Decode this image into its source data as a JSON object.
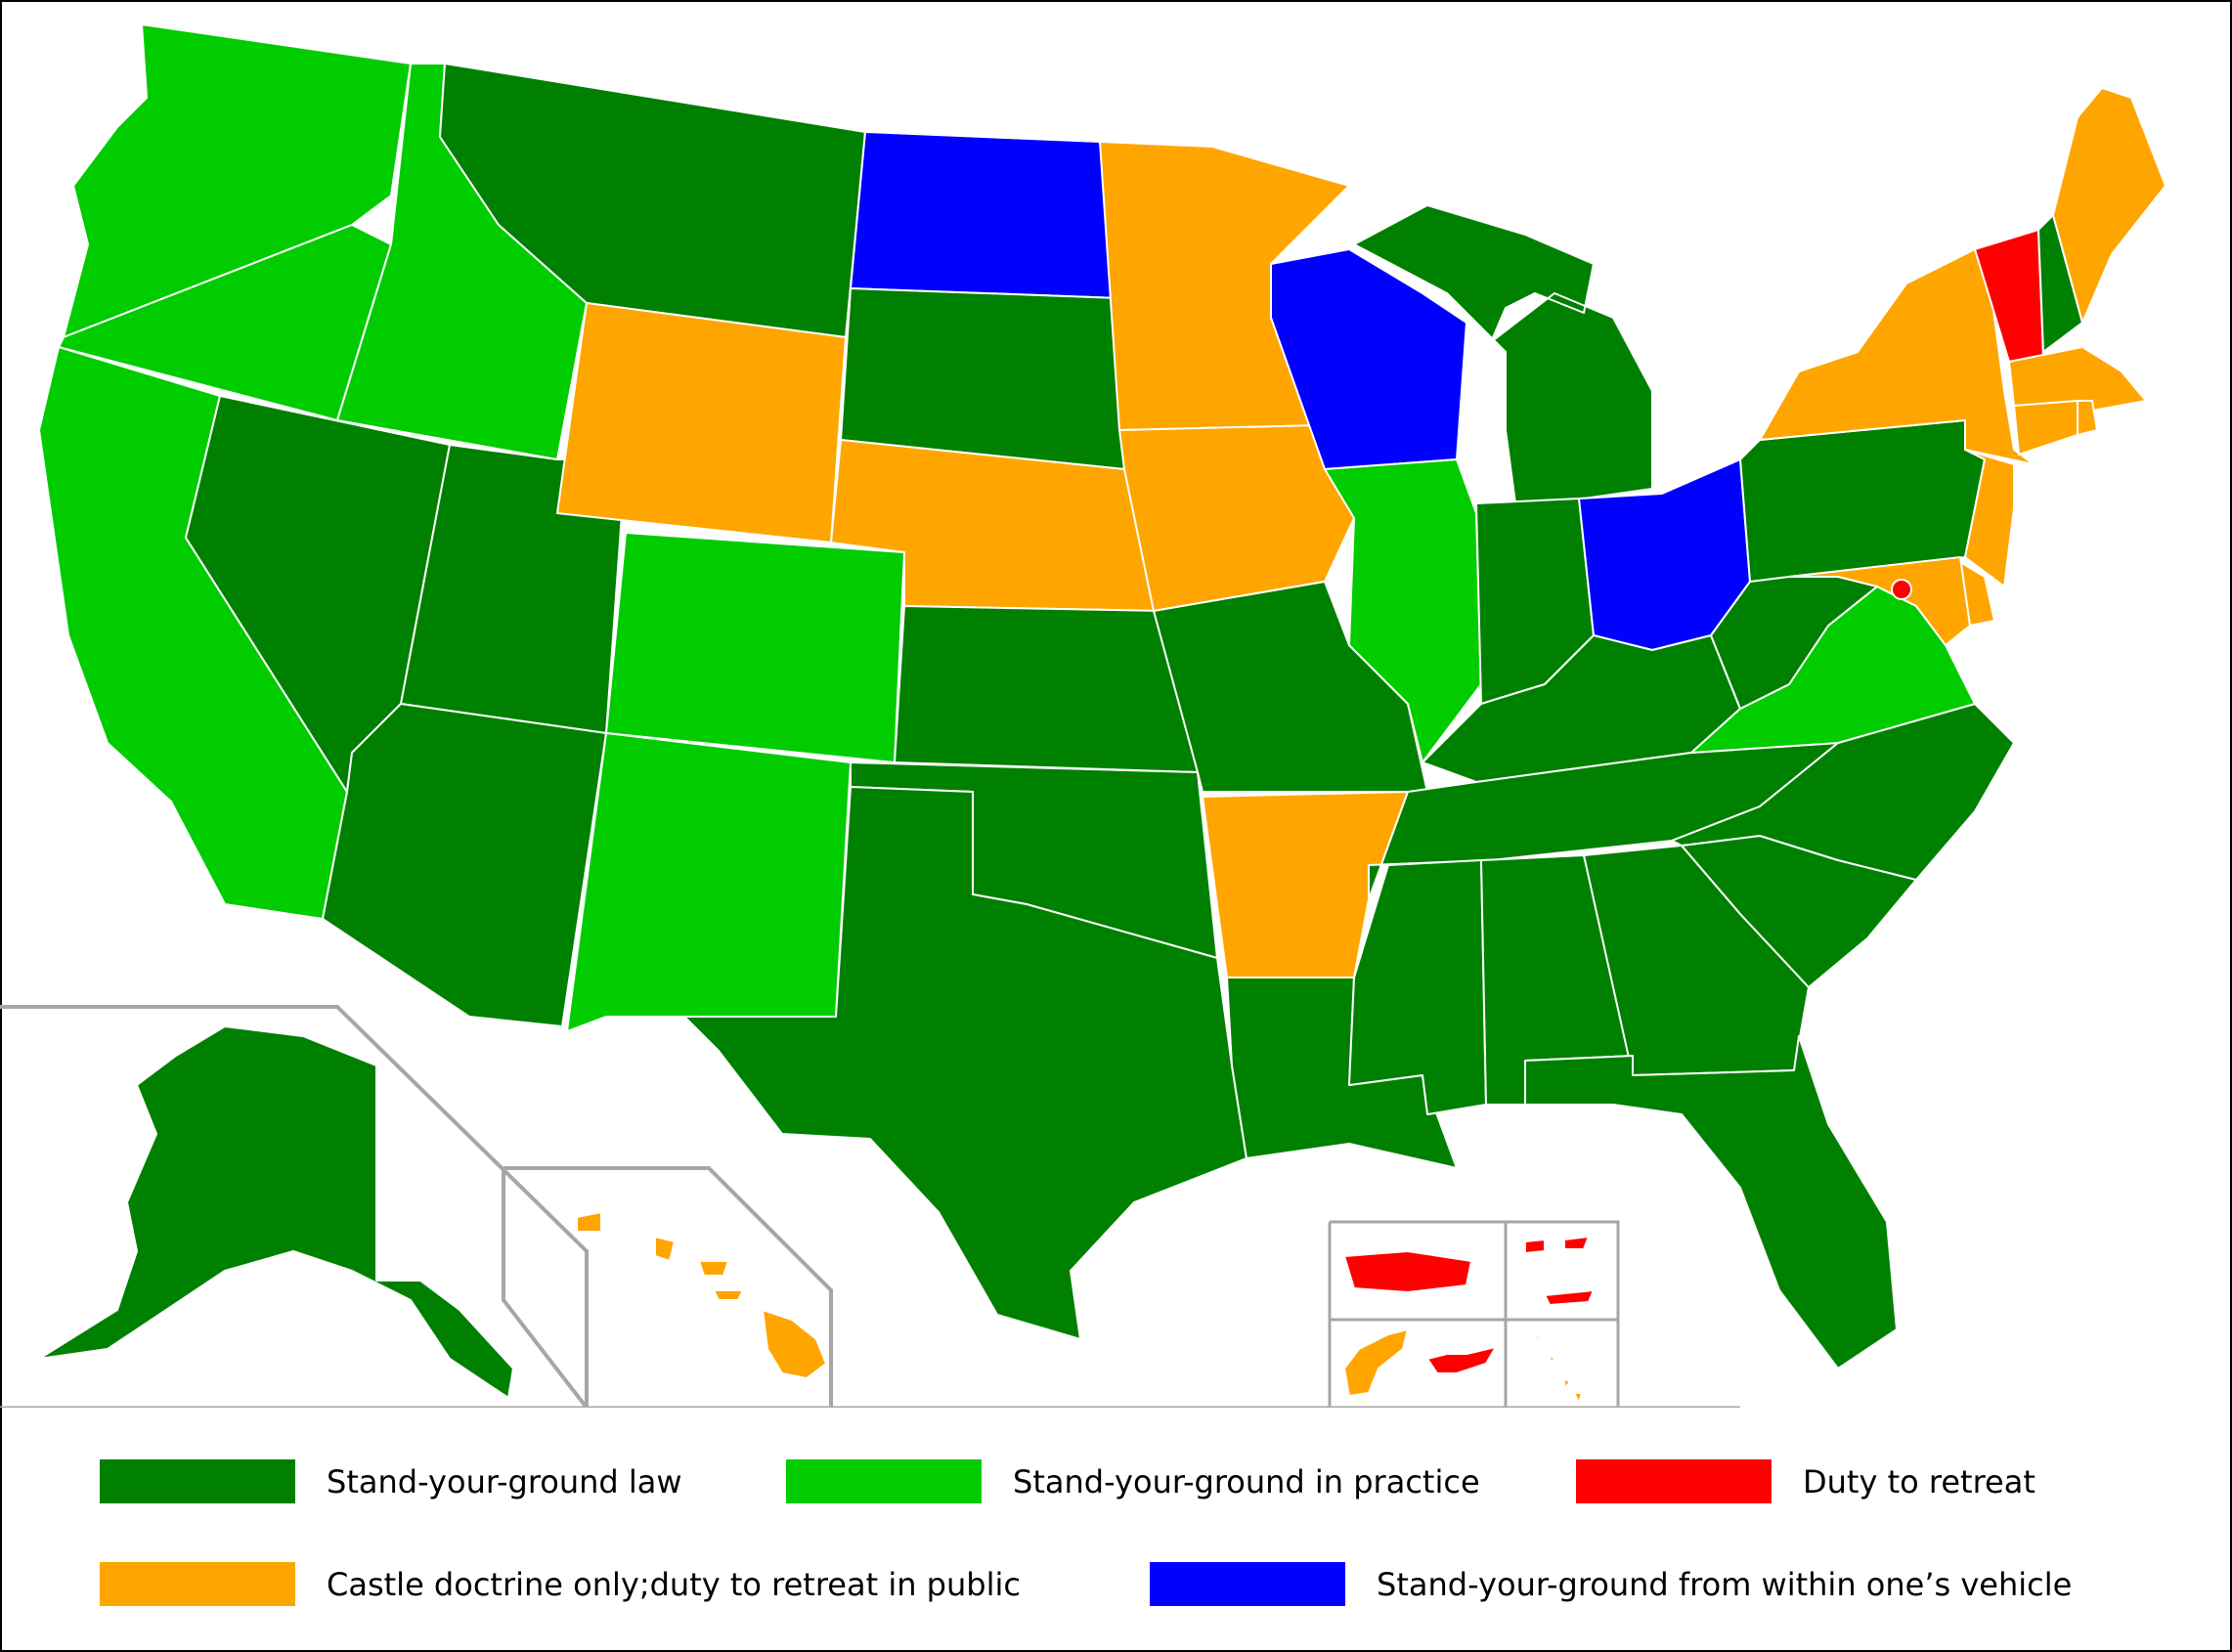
{
  "colors": {
    "syg_law": "#008000",
    "syg_practice": "#00cc00",
    "duty_to_retreat": "#ff0000",
    "castle_only": "#ffa500",
    "syg_vehicle": "#0000ff",
    "border": "#ffffff",
    "inset_lines": "#a6a6a6"
  },
  "legend": [
    {
      "key": "syg_law",
      "label": "Stand-your-ground law"
    },
    {
      "key": "syg_practice",
      "label": "Stand-your-ground in practice"
    },
    {
      "key": "duty_to_retreat",
      "label": "Duty to retreat"
    },
    {
      "key": "castle_only",
      "label": "Castle doctrine only;duty to retreat in public"
    },
    {
      "key": "syg_vehicle",
      "label": "Stand-your-ground from within one’s vehicle"
    }
  ],
  "regions": {
    "WA": "syg_practice",
    "OR": "syg_practice",
    "CA": "syg_practice",
    "ID": "syg_practice",
    "NV": "syg_law",
    "UT": "syg_law",
    "AZ": "syg_law",
    "MT": "syg_law",
    "WY": "castle_only",
    "CO": "syg_practice",
    "NM": "syg_practice",
    "ND": "syg_vehicle",
    "SD": "syg_law",
    "NE": "castle_only",
    "KS": "syg_law",
    "OK": "syg_law",
    "TX": "syg_law",
    "MN": "castle_only",
    "IA": "castle_only",
    "MO": "syg_law",
    "AR": "castle_only",
    "LA": "syg_law",
    "WI": "syg_vehicle",
    "IL": "syg_practice",
    "MI": "syg_law",
    "IN": "syg_law",
    "OH": "syg_vehicle",
    "KY": "syg_law",
    "TN": "syg_law",
    "MS": "syg_law",
    "AL": "syg_law",
    "GA": "syg_law",
    "FL": "syg_law",
    "SC": "syg_law",
    "NC": "syg_law",
    "VA": "syg_practice",
    "WV": "syg_law",
    "PA": "syg_law",
    "NY": "castle_only",
    "VT": "duty_to_retreat",
    "NH": "syg_law",
    "ME": "castle_only",
    "MA": "castle_only",
    "CT": "castle_only",
    "RI": "castle_only",
    "NJ": "castle_only",
    "DE": "castle_only",
    "MD": "castle_only",
    "DC": "duty_to_retreat",
    "AK": "syg_law",
    "HI": "castle_only",
    "PR": "duty_to_retreat",
    "VI": "duty_to_retreat",
    "GU": "castle_only",
    "MP": "castle_only",
    "AS": "duty_to_retreat"
  }
}
